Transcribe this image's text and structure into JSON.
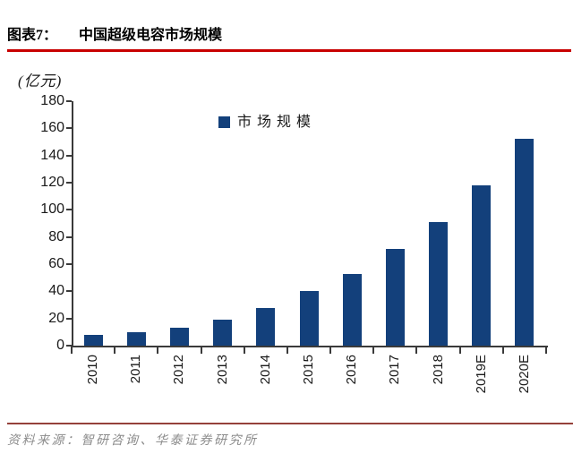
{
  "header": {
    "figure_label": "图表7：",
    "title": "中国超级电容市场规模"
  },
  "chart_data": {
    "type": "bar",
    "title": "中国超级电容市场规模",
    "unit_label": "(亿元)",
    "legend": {
      "label": "市场规模",
      "position": "top-center"
    },
    "categories": [
      "2010",
      "2011",
      "2012",
      "2013",
      "2014",
      "2015",
      "2016",
      "2017",
      "2018",
      "2019E",
      "2020E"
    ],
    "values": [
      8,
      10,
      13,
      19,
      28,
      40,
      53,
      71,
      91,
      118,
      152
    ],
    "ylim": [
      0,
      180
    ],
    "ytick_step": 20,
    "grid": false,
    "bar_color": "#13407B"
  },
  "footer": {
    "source": "资料来源：智研咨询、华泰证券研究所"
  },
  "colors": {
    "bar_blue": "#13407B",
    "title_rule_red": "#C80000",
    "footer_rule_brownred": "#95413A",
    "axis_gray": "#3a3a3a",
    "source_text_gray": "#8C8C8C"
  }
}
